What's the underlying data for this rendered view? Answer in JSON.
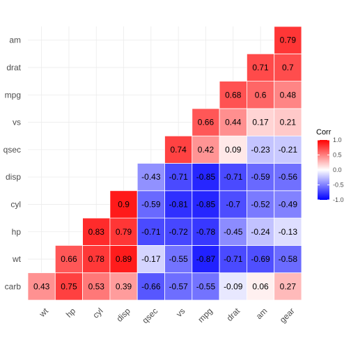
{
  "chart_data": {
    "type": "heatmap",
    "title": "",
    "xlabel": "",
    "ylabel": "",
    "x": [
      "wt",
      "hp",
      "cyl",
      "disp",
      "qsec",
      "vs",
      "mpg",
      "drat",
      "am",
      "gear"
    ],
    "y": [
      "carb",
      "wt",
      "hp",
      "cyl",
      "disp",
      "qsec",
      "vs",
      "mpg",
      "drat",
      "am"
    ],
    "values": [
      [
        0.43,
        0.75,
        0.53,
        0.39,
        -0.66,
        -0.57,
        -0.55,
        -0.09,
        0.06,
        0.27
      ],
      [
        null,
        0.66,
        0.78,
        0.89,
        -0.17,
        -0.55,
        -0.87,
        -0.71,
        -0.69,
        -0.58
      ],
      [
        null,
        null,
        0.83,
        0.79,
        -0.71,
        -0.72,
        -0.78,
        -0.45,
        -0.24,
        -0.13
      ],
      [
        null,
        null,
        null,
        0.9,
        -0.59,
        -0.81,
        -0.85,
        -0.7,
        -0.52,
        -0.49
      ],
      [
        null,
        null,
        null,
        null,
        -0.43,
        -0.71,
        -0.85,
        -0.71,
        -0.59,
        -0.56
      ],
      [
        null,
        null,
        null,
        null,
        null,
        0.74,
        0.42,
        0.09,
        -0.23,
        -0.21
      ],
      [
        null,
        null,
        null,
        null,
        null,
        null,
        0.66,
        0.44,
        0.17,
        0.21
      ],
      [
        null,
        null,
        null,
        null,
        null,
        null,
        null,
        0.68,
        0.6,
        0.48
      ],
      [
        null,
        null,
        null,
        null,
        null,
        null,
        null,
        null,
        0.71,
        0.7
      ],
      [
        null,
        null,
        null,
        null,
        null,
        null,
        null,
        null,
        null,
        0.79
      ]
    ],
    "color_scale": {
      "low": "#0000ff",
      "mid": "#ffffff",
      "high": "#ff0000",
      "limits": [
        -1,
        1
      ]
    },
    "legend": {
      "title": "Corr",
      "ticks": [
        1.0,
        0.5,
        0.0,
        -0.5,
        -1.0
      ],
      "tick_labels": [
        "1.0",
        "0.5",
        "0.0",
        "-0.5",
        "-1.0"
      ],
      "placement": "right"
    },
    "grid": true
  }
}
